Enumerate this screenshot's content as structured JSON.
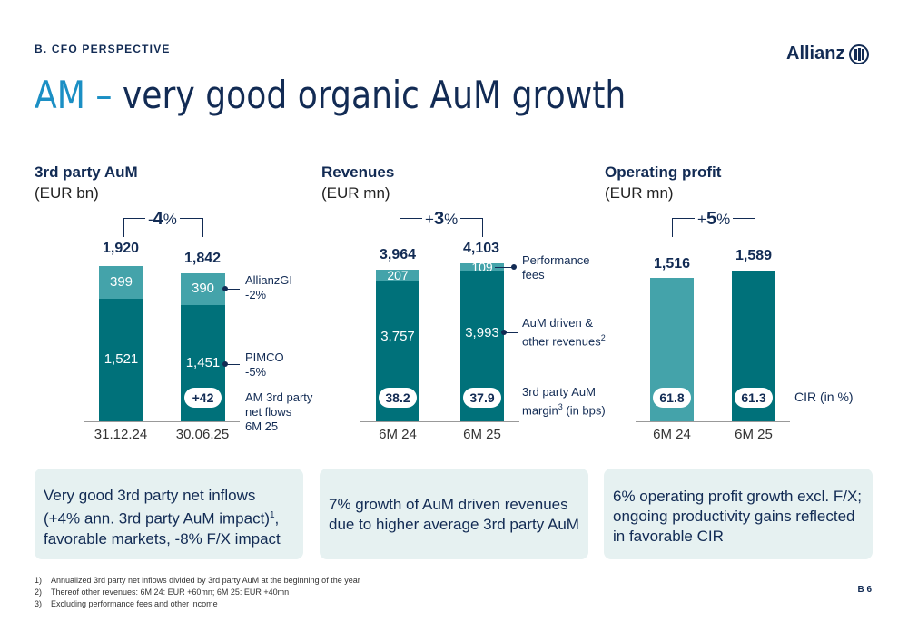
{
  "header": {
    "section": "B. CFO PERSPECTIVE",
    "logo": "Allianz",
    "title_prefix": "AM –",
    "title_rest": " very good organic AuM growth"
  },
  "panels": {
    "aum": {
      "title": "3rd party AuM",
      "unit": "(EUR bn)",
      "growth_sign": "-",
      "growth_num": "4",
      "growth_pct": "%",
      "categories": [
        "31.12.24",
        "30.06.25"
      ],
      "totals": [
        "1,920",
        "1,842"
      ],
      "lower_labels": [
        "1,521",
        "1,451"
      ],
      "upper_labels": [
        "399",
        "390"
      ],
      "net_flows": "+42",
      "notes": {
        "allianzgi": "AllianzGI\n-2%",
        "pimco": "PIMCO\n-5%",
        "flows": "AM 3rd party\nnet flows\n6M 25"
      }
    },
    "revenues": {
      "title": "Revenues",
      "unit": "(EUR mn)",
      "growth_sign": "+",
      "growth_num": "3",
      "growth_pct": "%",
      "categories": [
        "6M 24",
        "6M 25"
      ],
      "totals": [
        "3,964",
        "4,103"
      ],
      "lower_labels": [
        "3,757",
        "3,993"
      ],
      "upper_labels": [
        "207",
        "109"
      ],
      "margins": [
        "38.2",
        "37.9"
      ],
      "notes": {
        "perf": "Performance\nfees",
        "aum_driven": "AuM driven &\nother revenues",
        "aum_driven_sup": "2",
        "margin": "3rd party AuM\nmargin",
        "margin_sup": "3",
        "margin_tail": " (in bps)"
      }
    },
    "op": {
      "title": "Operating profit",
      "unit": "(EUR mn)",
      "growth_sign": "+",
      "growth_num": "5",
      "growth_pct": "%",
      "categories": [
        "6M 24",
        "6M 25"
      ],
      "totals": [
        "1,516",
        "1,589"
      ],
      "cir": [
        "61.8",
        "61.3"
      ],
      "cir_label": "CIR (in %)"
    }
  },
  "chart_data": [
    {
      "type": "bar",
      "title": "3rd party AuM",
      "ylabel": "EUR bn",
      "categories": [
        "31.12.24",
        "30.06.25"
      ],
      "series": [
        {
          "name": "PIMCO",
          "values": [
            1521,
            1451
          ]
        },
        {
          "name": "AllianzGI",
          "values": [
            399,
            390
          ]
        }
      ],
      "totals": [
        1920,
        1842
      ],
      "growth": "-4%"
    },
    {
      "type": "bar",
      "title": "Revenues",
      "ylabel": "EUR mn",
      "categories": [
        "6M 24",
        "6M 25"
      ],
      "series": [
        {
          "name": "AuM driven & other revenues",
          "values": [
            3757,
            3993
          ]
        },
        {
          "name": "Performance fees",
          "values": [
            207,
            109
          ]
        }
      ],
      "totals": [
        3964,
        4103
      ],
      "margin_bps": [
        38.2,
        37.9
      ],
      "growth": "+3%"
    },
    {
      "type": "bar",
      "title": "Operating profit",
      "ylabel": "EUR mn",
      "categories": [
        "6M 24",
        "6M 25"
      ],
      "values": [
        1516,
        1589
      ],
      "cir_pct": [
        61.8,
        61.3
      ],
      "growth": "+5%"
    }
  ],
  "boxes": {
    "aum": "Very good 3rd party net inflows (+4% ann. 3rd party AuM impact)",
    "aum_sup": "1",
    "aum_tail": ", favorable markets, -8% F/X impact",
    "revenues": "7% growth of AuM driven revenues due to higher average 3rd party AuM",
    "op": "6% operating profit growth excl. F/X; ongoing productivity gains reflected in favorable CIR"
  },
  "footnotes": [
    {
      "num": "1)",
      "text": "Annualized 3rd party net inflows divided by 3rd party AuM at the beginning of the year"
    },
    {
      "num": "2)",
      "text": "Thereof other revenues: 6M 24: EUR +60mn; 6M 25: EUR +40mn"
    },
    {
      "num": "3)",
      "text": "Excluding performance fees and other income"
    }
  ],
  "page_number": "B 6"
}
